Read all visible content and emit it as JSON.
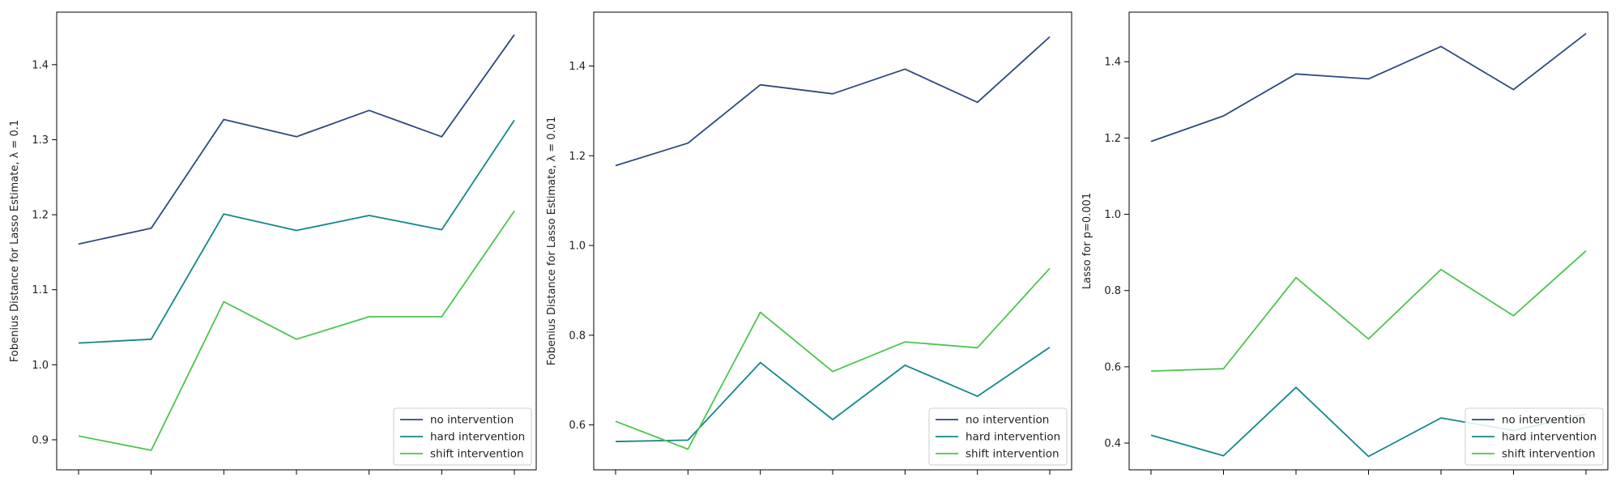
{
  "chart_data": [
    {
      "type": "line",
      "title": "",
      "xlabel": "",
      "ylabel": "Fobenius Distance for Lasso Estimate, λ = 0.1",
      "x": [
        0,
        1,
        2,
        3,
        4,
        5,
        6
      ],
      "ylim": [
        0.86,
        1.47
      ],
      "yticks": [
        0.9,
        1.0,
        1.1,
        1.2,
        1.3,
        1.4
      ],
      "grid": false,
      "legend_position": "lower-right",
      "series": [
        {
          "name": "no intervention",
          "color": "#2c4a80",
          "values": [
            1.161,
            1.182,
            1.327,
            1.304,
            1.339,
            1.304,
            1.44
          ]
        },
        {
          "name": "hard intervention",
          "color": "#14878a",
          "values": [
            1.029,
            1.034,
            1.201,
            1.179,
            1.199,
            1.18,
            1.326
          ]
        },
        {
          "name": "shift intervention",
          "color": "#4dc44f",
          "values": [
            0.905,
            0.886,
            1.084,
            1.034,
            1.064,
            1.064,
            1.205
          ]
        }
      ]
    },
    {
      "type": "line",
      "title": "",
      "xlabel": "",
      "ylabel": "Fobenius Distance for Lasso Estimate, λ = 0.01",
      "x": [
        0,
        1,
        2,
        3,
        4,
        5,
        6
      ],
      "ylim": [
        0.5,
        1.52
      ],
      "yticks": [
        0.6,
        0.8,
        1.0,
        1.2,
        1.4
      ],
      "grid": false,
      "legend_position": "lower-right",
      "series": [
        {
          "name": "no intervention",
          "color": "#2c4a80",
          "values": [
            1.178,
            1.228,
            1.358,
            1.338,
            1.393,
            1.319,
            1.465
          ]
        },
        {
          "name": "hard intervention",
          "color": "#14878a",
          "values": [
            0.563,
            0.566,
            0.739,
            0.612,
            0.733,
            0.664,
            0.773
          ]
        },
        {
          "name": "shift intervention",
          "color": "#4dc44f",
          "values": [
            0.608,
            0.546,
            0.851,
            0.719,
            0.785,
            0.772,
            0.949
          ]
        }
      ]
    },
    {
      "type": "line",
      "title": "",
      "xlabel": "",
      "ylabel": "Lasso for p=0.001",
      "x": [
        0,
        1,
        2,
        3,
        4,
        5,
        6
      ],
      "ylim": [
        0.33,
        1.53
      ],
      "yticks": [
        0.4,
        0.6,
        0.8,
        1.0,
        1.2,
        1.4
      ],
      "grid": false,
      "legend_position": "lower-right",
      "series": [
        {
          "name": "no intervention",
          "color": "#2c4a80",
          "values": [
            1.191,
            1.258,
            1.368,
            1.355,
            1.44,
            1.327,
            1.474
          ]
        },
        {
          "name": "hard intervention",
          "color": "#14878a",
          "values": [
            0.421,
            0.367,
            0.546,
            0.365,
            0.466,
            0.433,
            0.476
          ]
        },
        {
          "name": "shift intervention",
          "color": "#4dc44f",
          "values": [
            0.589,
            0.595,
            0.834,
            0.673,
            0.855,
            0.734,
            0.904
          ]
        }
      ]
    }
  ]
}
